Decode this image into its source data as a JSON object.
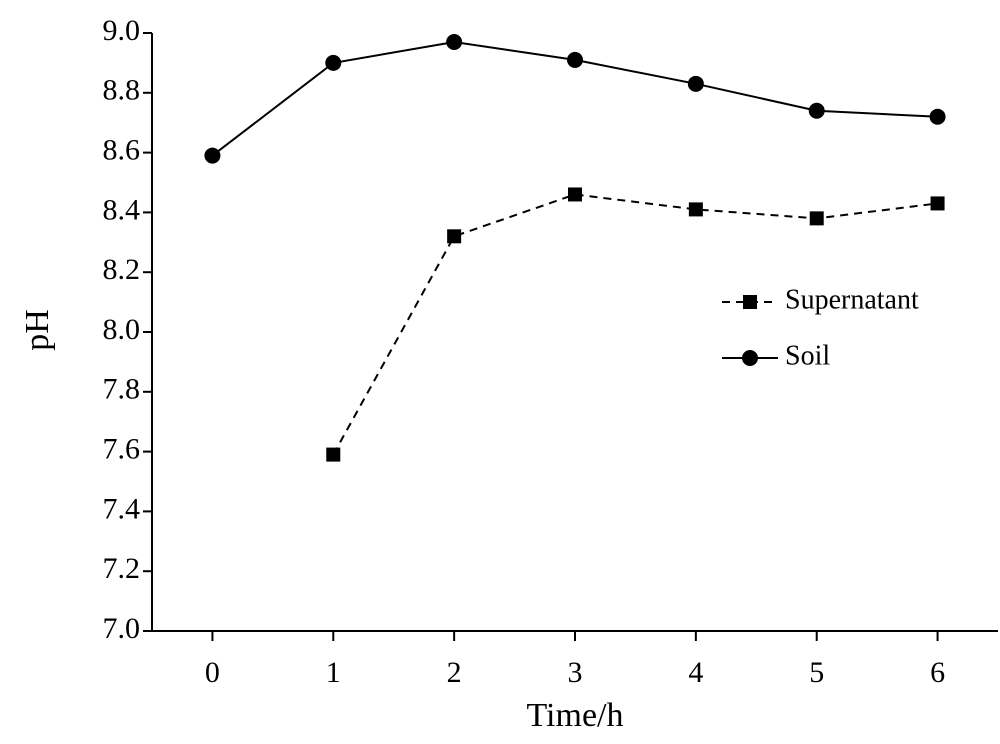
{
  "chart_data": {
    "type": "line",
    "x_label": "Time/h",
    "y_label": "pH",
    "x": [
      0,
      1,
      2,
      3,
      4,
      5,
      6
    ],
    "series": [
      {
        "name": "Supernatant",
        "color": "#000000",
        "marker": "square",
        "linestyle": "dashed",
        "values": [
          null,
          7.59,
          8.32,
          8.46,
          8.41,
          8.38,
          8.43
        ]
      },
      {
        "name": "Soil",
        "color": "#000000",
        "marker": "circle",
        "linestyle": "solid",
        "values": [
          8.59,
          8.9,
          8.97,
          8.91,
          8.83,
          8.74,
          8.72
        ]
      }
    ],
    "xlim": [
      -0.5,
      6.5
    ],
    "xticks": [
      0,
      1,
      2,
      3,
      4,
      5,
      6
    ],
    "ylim": [
      7,
      9
    ],
    "yticks": [
      {
        "value": 7,
        "label": "7.0"
      },
      7.2,
      7.4,
      7.6,
      7.8,
      {
        "value": 8,
        "label": "8.0"
      },
      8.2,
      8.4,
      8.6,
      8.8,
      {
        "value": 9,
        "label": "9.0"
      }
    ],
    "grid": false,
    "legend": "center right"
  }
}
